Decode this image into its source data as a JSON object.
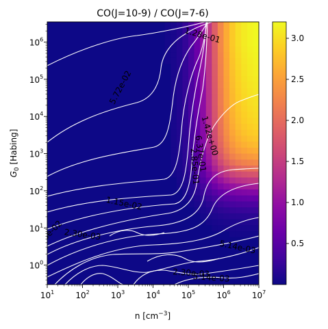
{
  "chart_data": {
    "type": "heatmap",
    "title": "CO(J=10-9) / CO(J=7-6)",
    "xlabel": "n [cm",
    "xlabel_sup": "−3",
    "xlabel_end": "]",
    "ylabel_main": "G",
    "ylabel_sub": "0",
    "ylabel_end": " [Habing]",
    "xscale": "log",
    "yscale": "log",
    "xlim": [
      10,
      10000000
    ],
    "ylim": [
      0.3,
      3500000
    ],
    "x_ticks": [
      {
        "value": 10,
        "base": "10",
        "exp": "1"
      },
      {
        "value": 100,
        "base": "10",
        "exp": "2"
      },
      {
        "value": 1000,
        "base": "10",
        "exp": "3"
      },
      {
        "value": 10000,
        "base": "10",
        "exp": "4"
      },
      {
        "value": 100000,
        "base": "10",
        "exp": "5"
      },
      {
        "value": 1000000,
        "base": "10",
        "exp": "6"
      },
      {
        "value": 10000000,
        "base": "10",
        "exp": "7"
      }
    ],
    "y_ticks": [
      {
        "value": 1,
        "base": "10",
        "exp": "0"
      },
      {
        "value": 10,
        "base": "10",
        "exp": "1"
      },
      {
        "value": 100,
        "base": "10",
        "exp": "2"
      },
      {
        "value": 1000,
        "base": "10",
        "exp": "3"
      },
      {
        "value": 10000,
        "base": "10",
        "exp": "4"
      },
      {
        "value": 100000,
        "base": "10",
        "exp": "5"
      },
      {
        "value": 1000000,
        "base": "10",
        "exp": "6"
      }
    ],
    "colormap": "plasma",
    "colorbar": {
      "min": 0.0,
      "max": 3.2,
      "ticks": [
        "0.5",
        "1.0",
        "1.5",
        "2.0",
        "2.5",
        "3.0"
      ],
      "tick_values": [
        0.5,
        1.0,
        1.5,
        2.0,
        2.5,
        3.0
      ]
    },
    "contour_color": "#ffffff",
    "contour_labels": [
      {
        "text": "1.28e-01",
        "x": 250000,
        "y": 1500000,
        "angle": 16
      },
      {
        "text": "5.72e-02",
        "x": 1200,
        "y": 60000,
        "angle": -62
      },
      {
        "text": "1.42e+00",
        "x": 400000,
        "y": 3000,
        "angle": 74
      },
      {
        "text": "6.37e-01",
        "x": 220000,
        "y": 1000,
        "angle": 82
      },
      {
        "text": "2.85e-01",
        "x": 150000,
        "y": 450,
        "angle": 86
      },
      {
        "text": "1.15e-02",
        "x": 1500,
        "y": 45,
        "angle": 12
      },
      {
        "text": "2.30e-03",
        "x": 100,
        "y": 6.5,
        "angle": 8
      },
      {
        "text": "6e-02",
        "x": 14,
        "y": 8.5,
        "angle": -45
      },
      {
        "text": "5.14e-03",
        "x": 2500000,
        "y": 3,
        "angle": 12
      },
      {
        "text": "2.30e-03",
        "x": 120000,
        "y": 0.6,
        "angle": 4
      },
      {
        "text": "5.14e-03",
        "x": 450000,
        "y": 0.45,
        "angle": 4
      }
    ]
  }
}
